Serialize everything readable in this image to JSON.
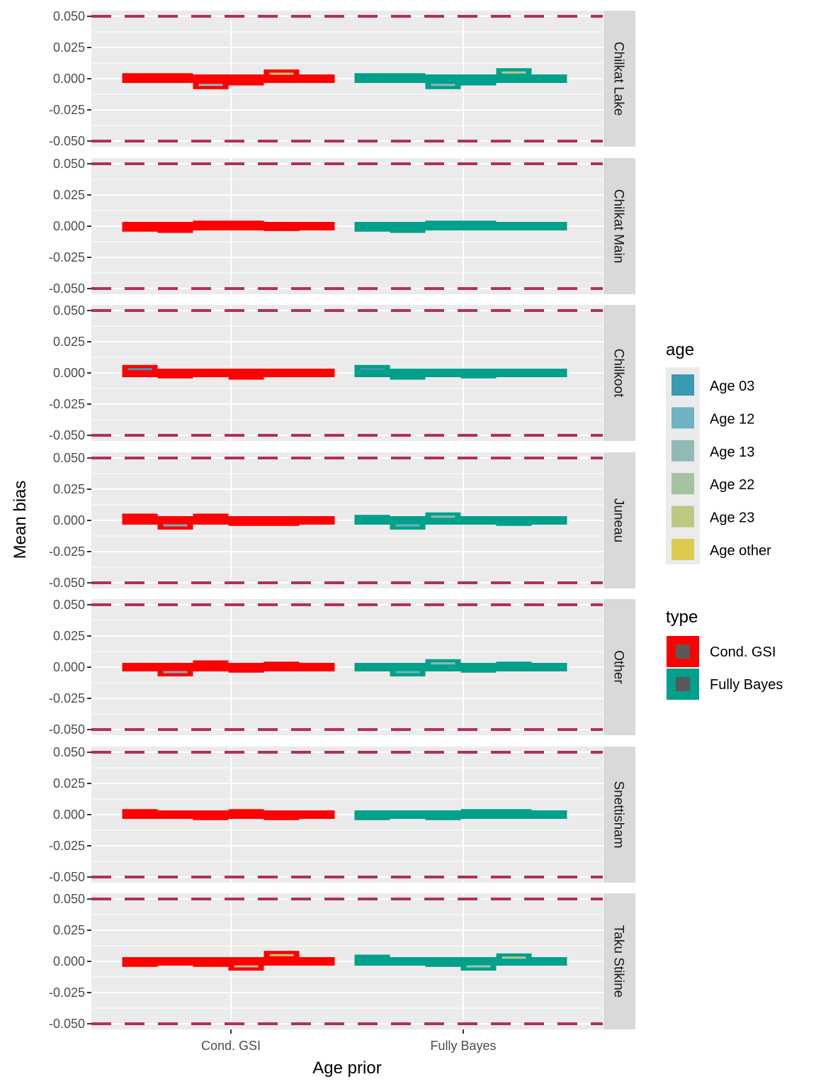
{
  "chart_data": {
    "type": "bar",
    "title": "",
    "xlabel": "Age prior",
    "ylabel": "Mean bias",
    "ylim": [
      -0.05,
      0.05
    ],
    "y_ticks": [
      "0.050",
      "0.025",
      "0.000",
      "-0.025",
      "-0.050"
    ],
    "y_tick_values": [
      0.05,
      0.025,
      0,
      -0.025,
      -0.05
    ],
    "reference_lines": [
      0.05,
      -0.05
    ],
    "reference_line_color": "#B03060",
    "categories": [
      "Cond. GSI",
      "Fully Bayes"
    ],
    "ages": [
      "Age 03",
      "Age 12",
      "Age 13",
      "Age 22",
      "Age 23",
      "Age other"
    ],
    "legend": {
      "age_title": "age",
      "age_items": [
        {
          "label": "Age 03",
          "color": "#3A9AB2"
        },
        {
          "label": "Age 12",
          "color": "#6FB2C1"
        },
        {
          "label": "Age 13",
          "color": "#91BAB6"
        },
        {
          "label": "Age 22",
          "color": "#A5C2A3"
        },
        {
          "label": "Age 23",
          "color": "#BDC881"
        },
        {
          "label": "Age other",
          "color": "#DCCB4E"
        }
      ],
      "type_title": "type",
      "type_items": [
        {
          "label": "Cond. GSI",
          "color": "#FF0000"
        },
        {
          "label": "Fully Bayes",
          "color": "#00A08A"
        }
      ],
      "inner_color": "#595959"
    },
    "panels": [
      {
        "name": "Chilkat Lake",
        "series": [
          {
            "type": "Cond. GSI",
            "values": [
              0.001,
              0.001,
              -0.005,
              -0.002,
              0.004,
              0.0
            ]
          },
          {
            "type": "Fully Bayes",
            "values": [
              0.001,
              0.001,
              -0.005,
              -0.002,
              0.005,
              0.0
            ]
          }
        ]
      },
      {
        "name": "Chilkat Main",
        "series": [
          {
            "type": "Cond. GSI",
            "values": [
              -0.001,
              -0.002,
              0.001,
              0.001,
              -0.0005,
              0.0
            ]
          },
          {
            "type": "Fully Bayes",
            "values": [
              -0.001,
              -0.002,
              0.001,
              0.001,
              0.0,
              0.0
            ]
          }
        ]
      },
      {
        "name": "Chilkoot",
        "series": [
          {
            "type": "Cond. GSI",
            "values": [
              0.003,
              -0.001,
              0.0,
              -0.002,
              0.0,
              0.0
            ]
          },
          {
            "type": "Fully Bayes",
            "values": [
              0.003,
              -0.002,
              0.0,
              -0.001,
              0.0,
              0.0
            ]
          }
        ]
      },
      {
        "name": "Juneau",
        "series": [
          {
            "type": "Cond. GSI",
            "values": [
              0.002,
              -0.004,
              0.002,
              -0.001,
              -0.001,
              0.0
            ]
          },
          {
            "type": "Fully Bayes",
            "values": [
              0.001,
              -0.004,
              0.003,
              0.0,
              -0.001,
              0.0
            ]
          }
        ]
      },
      {
        "name": "Other",
        "series": [
          {
            "type": "Cond. GSI",
            "values": [
              0.0,
              -0.004,
              0.002,
              -0.001,
              0.001,
              0.0
            ]
          },
          {
            "type": "Fully Bayes",
            "values": [
              0.0,
              -0.004,
              0.003,
              -0.001,
              0.001,
              0.0
            ]
          }
        ]
      },
      {
        "name": "Snettisham",
        "series": [
          {
            "type": "Cond. GSI",
            "values": [
              0.001,
              0.0,
              -0.001,
              0.001,
              -0.001,
              0.0
            ]
          },
          {
            "type": "Fully Bayes",
            "values": [
              -0.001,
              0.0,
              -0.001,
              0.001,
              0.001,
              0.0
            ]
          }
        ]
      },
      {
        "name": "Taku Stikine",
        "series": [
          {
            "type": "Cond. GSI",
            "values": [
              -0.001,
              0.0,
              -0.001,
              -0.004,
              0.005,
              0.0
            ]
          },
          {
            "type": "Fully Bayes",
            "values": [
              0.002,
              0.0,
              -0.001,
              -0.004,
              0.003,
              0.0
            ]
          }
        ]
      }
    ]
  }
}
